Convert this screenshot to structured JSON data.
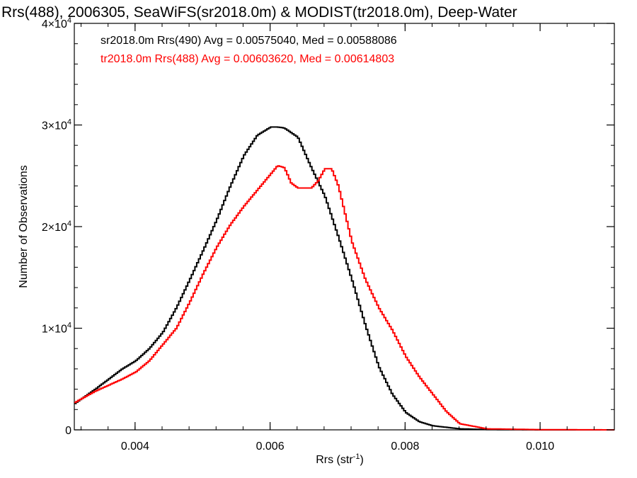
{
  "chart_data": {
    "type": "line",
    "title": "Rrs(488), 2006305, SeaWiFS(sr2018.0m) & MODIST(tr2018.0m), Deep-Water",
    "xlabel": "Rrs (str",
    "xlabel_sup": "-1",
    "xlabel_end": ")",
    "ylabel": "Number of Observations",
    "xlim": [
      0.0031,
      0.0111
    ],
    "ylim": [
      0,
      40000
    ],
    "x_ticks": [
      {
        "value": 0.004,
        "label": "0.004"
      },
      {
        "value": 0.006,
        "label": "0.006"
      },
      {
        "value": 0.008,
        "label": "0.008"
      },
      {
        "value": 0.01,
        "label": "0.010"
      }
    ],
    "y_ticks": [
      {
        "value": 0,
        "label": "0",
        "exp": ""
      },
      {
        "value": 10000,
        "label": "1×10",
        "exp": "4"
      },
      {
        "value": 20000,
        "label": "2×10",
        "exp": "4"
      },
      {
        "value": 30000,
        "label": "3×10",
        "exp": "4"
      },
      {
        "value": 40000,
        "label": "4×10",
        "exp": "4"
      }
    ],
    "x_minor_step": 0.0004,
    "y_minor_step": 2000,
    "grid": false,
    "legend_position": "top-left",
    "series": [
      {
        "name": "sr2018.0m Rrs(490) Avg = 0.00575040, Med = 0.00588086",
        "color": "#000000",
        "x": [
          0.0031,
          0.0034,
          0.0036,
          0.0038,
          0.004,
          0.0042,
          0.0044,
          0.0046,
          0.0048,
          0.005,
          0.0052,
          0.0054,
          0.0056,
          0.0058,
          0.006,
          0.0061,
          0.0062,
          0.0064,
          0.0066,
          0.0068,
          0.007,
          0.0072,
          0.0074,
          0.0076,
          0.0078,
          0.008,
          0.0082,
          0.0084,
          0.0088,
          0.0092,
          0.01,
          0.0111
        ],
        "y": [
          2600,
          4000,
          5000,
          6000,
          6800,
          8000,
          9600,
          12000,
          14800,
          17700,
          20700,
          24000,
          27000,
          29000,
          29800,
          29800,
          29700,
          28800,
          25800,
          23000,
          19000,
          14800,
          10300,
          6200,
          3500,
          1700,
          800,
          400,
          100,
          30,
          0,
          0
        ]
      },
      {
        "name": "tr2018.0m Rrs(488) Avg = 0.00603620, Med = 0.00614803",
        "color": "#ff0000",
        "x": [
          0.0031,
          0.0034,
          0.0036,
          0.0038,
          0.004,
          0.0042,
          0.0044,
          0.0046,
          0.0048,
          0.005,
          0.0052,
          0.0054,
          0.0056,
          0.0058,
          0.006,
          0.0061,
          0.0062,
          0.0063,
          0.0064,
          0.0066,
          0.0067,
          0.0068,
          0.0069,
          0.007,
          0.0072,
          0.0074,
          0.0076,
          0.0078,
          0.008,
          0.0082,
          0.0084,
          0.0086,
          0.0088,
          0.0092,
          0.01,
          0.0111
        ],
        "y": [
          2700,
          3800,
          4400,
          5000,
          5700,
          6800,
          8400,
          10000,
          12600,
          15400,
          18000,
          20200,
          22000,
          23600,
          25200,
          26000,
          25800,
          24300,
          23800,
          23800,
          24500,
          25700,
          25700,
          24000,
          18500,
          14800,
          12000,
          9800,
          7200,
          5200,
          3500,
          1800,
          600,
          100,
          20,
          0
        ]
      }
    ]
  }
}
